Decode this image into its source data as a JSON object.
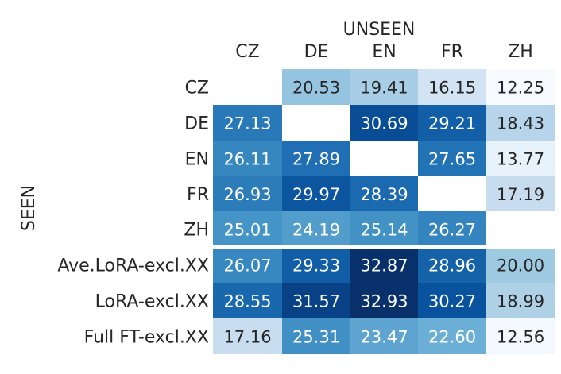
{
  "chart_data": {
    "type": "heatmap",
    "title": "",
    "xlabel": "UNSEEN",
    "ylabel": "SEEN",
    "columns": [
      "CZ",
      "DE",
      "EN",
      "FR",
      "ZH"
    ],
    "rows": [
      "CZ",
      "DE",
      "EN",
      "FR",
      "ZH",
      "Ave.LoRA-excl.XX",
      "LoRA-excl.XX",
      "Full FT-excl.XX"
    ],
    "values": [
      [
        null,
        20.53,
        19.41,
        16.15,
        12.25
      ],
      [
        27.13,
        null,
        30.69,
        29.21,
        18.43
      ],
      [
        26.11,
        27.89,
        null,
        27.65,
        13.77
      ],
      [
        26.93,
        29.97,
        28.39,
        null,
        17.19
      ],
      [
        25.01,
        24.19,
        25.14,
        26.27,
        null
      ],
      [
        26.07,
        29.33,
        32.87,
        28.96,
        20.0
      ],
      [
        28.55,
        31.57,
        32.93,
        30.27,
        18.99
      ],
      [
        17.16,
        25.31,
        23.47,
        22.6,
        12.56
      ]
    ],
    "value_labels": [
      [
        "",
        "20.53",
        "19.41",
        "16.15",
        "12.25"
      ],
      [
        "27.13",
        "",
        "30.69",
        "29.21",
        "18.43"
      ],
      [
        "26.11",
        "27.89",
        "",
        "27.65",
        "13.77"
      ],
      [
        "26.93",
        "29.97",
        "28.39",
        "",
        "17.19"
      ],
      [
        "25.01",
        "24.19",
        "25.14",
        "26.27",
        ""
      ],
      [
        "26.07",
        "29.33",
        "32.87",
        "28.96",
        "20.00"
      ],
      [
        "28.55",
        "31.57",
        "32.93",
        "30.27",
        "18.99"
      ],
      [
        "17.16",
        "25.31",
        "23.47",
        "22.60",
        "12.56"
      ]
    ],
    "colormap": "Blues",
    "value_range": [
      12.25,
      32.93
    ],
    "row_groups_separator_after_row": 4,
    "legend": "none"
  }
}
